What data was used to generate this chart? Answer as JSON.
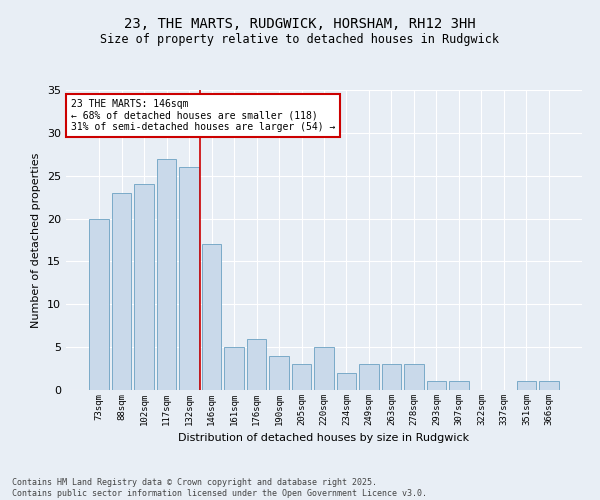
{
  "title1": "23, THE MARTS, RUDGWICK, HORSHAM, RH12 3HH",
  "title2": "Size of property relative to detached houses in Rudgwick",
  "xlabel": "Distribution of detached houses by size in Rudgwick",
  "ylabel": "Number of detached properties",
  "bar_labels": [
    "73sqm",
    "88sqm",
    "102sqm",
    "117sqm",
    "132sqm",
    "146sqm",
    "161sqm",
    "176sqm",
    "190sqm",
    "205sqm",
    "220sqm",
    "234sqm",
    "249sqm",
    "263sqm",
    "278sqm",
    "293sqm",
    "307sqm",
    "322sqm",
    "337sqm",
    "351sqm",
    "366sqm"
  ],
  "bar_values": [
    20,
    23,
    24,
    27,
    26,
    17,
    5,
    6,
    4,
    3,
    5,
    2,
    3,
    3,
    3,
    1,
    1,
    0,
    0,
    1,
    1
  ],
  "bar_color": "#c9d9ea",
  "bar_edgecolor": "#7aaac8",
  "vline_index": 5,
  "vline_color": "#cc0000",
  "annotation_text": "23 THE MARTS: 146sqm\n← 68% of detached houses are smaller (118)\n31% of semi-detached houses are larger (54) →",
  "annotation_box_edgecolor": "#cc0000",
  "bg_color": "#e8eef5",
  "plot_bg_color": "#e8eef5",
  "footer": "Contains HM Land Registry data © Crown copyright and database right 2025.\nContains public sector information licensed under the Open Government Licence v3.0.",
  "ylim": [
    0,
    35
  ],
  "yticks": [
    0,
    5,
    10,
    15,
    20,
    25,
    30,
    35
  ],
  "grid_color": "#ffffff",
  "grid_linewidth": 0.8
}
